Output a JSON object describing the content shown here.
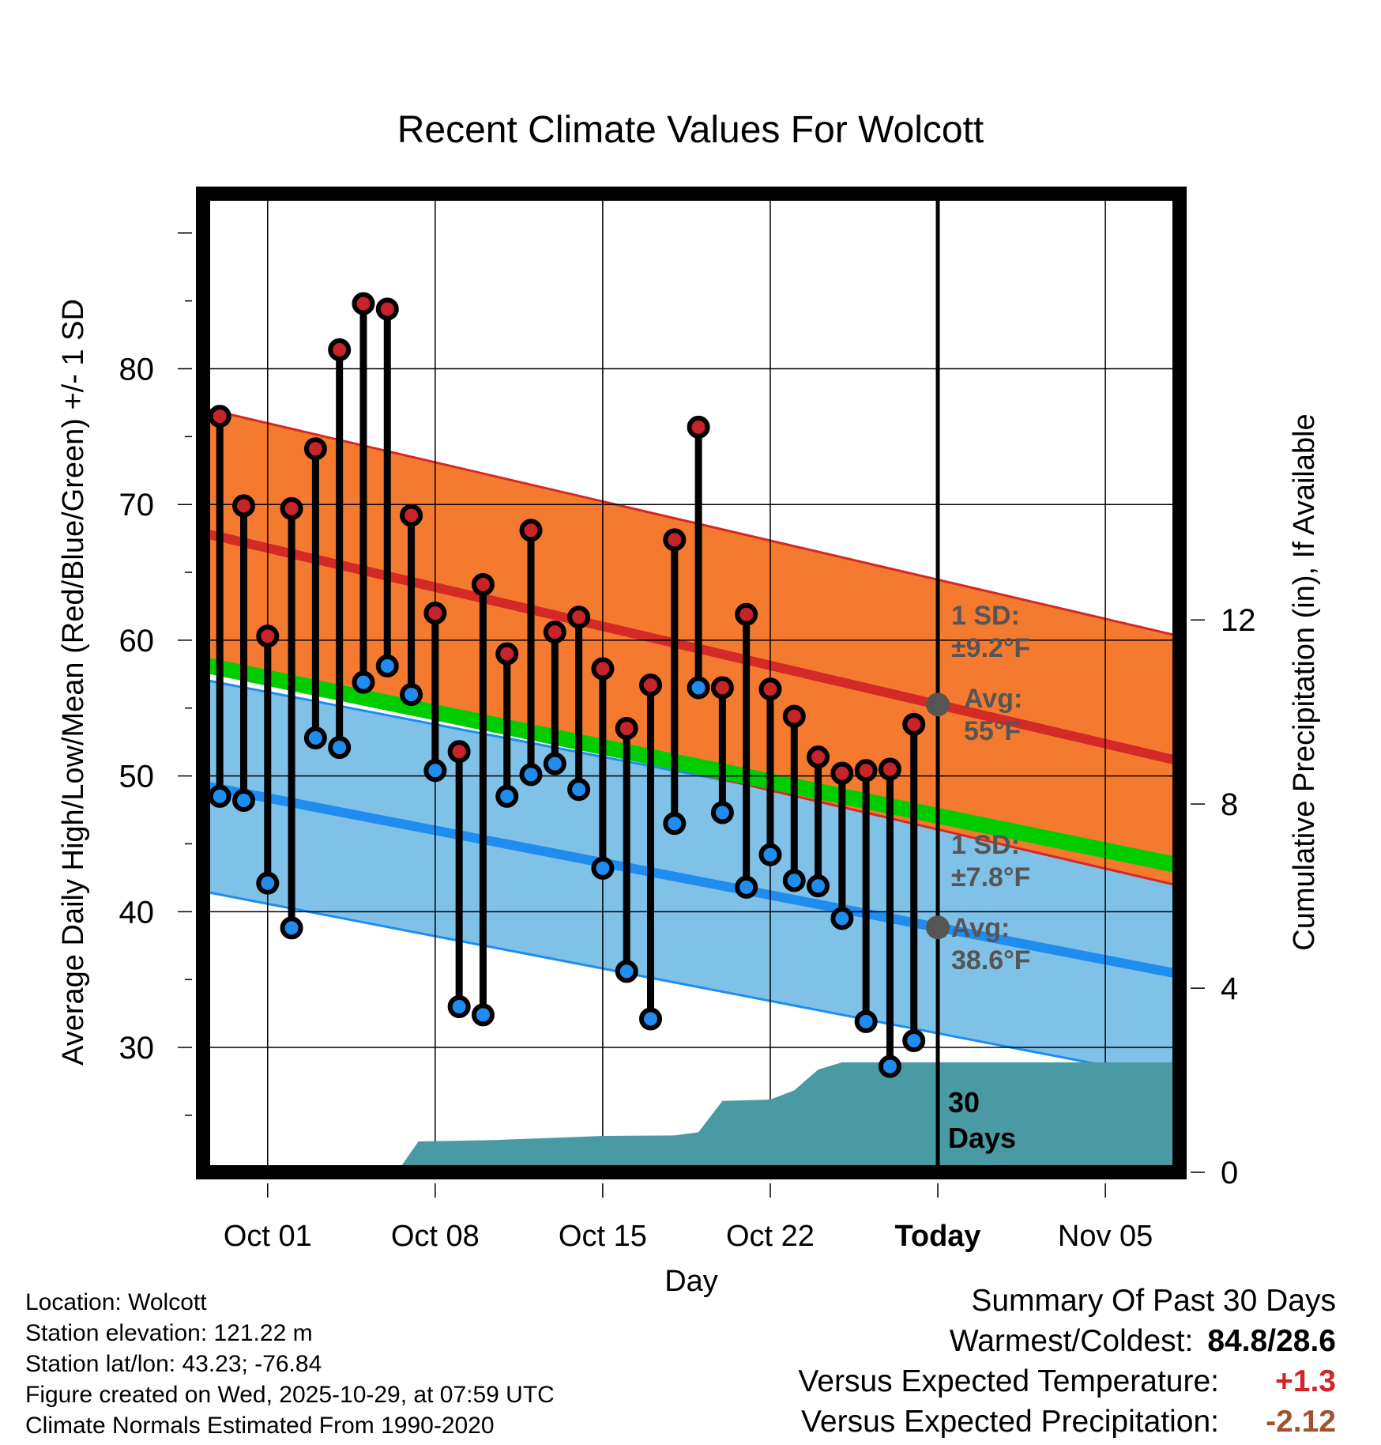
{
  "chart_data": {
    "type": "line",
    "title": "Recent Climate Values For Wolcott",
    "xlabel": "Day",
    "ylabel": "Average Daily High/Low/Mean (Red/Blue/Green) +/- 1 SD",
    "y2label": "Cumulative Precipitation (in), If Available",
    "ylim": [
      20.8,
      92.9
    ],
    "y2lim": [
      0,
      21.26
    ],
    "xlim": [
      -2.7,
      38.1
    ],
    "yticks": [
      30,
      40,
      50,
      60,
      70,
      80
    ],
    "y2ticks": [
      0,
      4,
      8,
      12
    ],
    "xticks": [
      {
        "day": 0,
        "label": "Oct 01"
      },
      {
        "day": 7,
        "label": "Oct 08"
      },
      {
        "day": 14,
        "label": "Oct 15"
      },
      {
        "day": 21,
        "label": "Oct 22"
      },
      {
        "day": 28,
        "label": "Today"
      },
      {
        "day": 35,
        "label": "Nov 05"
      }
    ],
    "today_day": 28,
    "period_label": [
      "30",
      "Days"
    ],
    "days": [
      -2,
      -1,
      0,
      1,
      2,
      3,
      4,
      5,
      6,
      7,
      8,
      9,
      10,
      11,
      12,
      13,
      14,
      15,
      16,
      17,
      18,
      19,
      20,
      21,
      22,
      23,
      24,
      25,
      26,
      27
    ],
    "highs": [
      76.5,
      69.9,
      60.3,
      69.7,
      74.1,
      81.4,
      84.8,
      84.4,
      69.2,
      62.0,
      51.8,
      64.1,
      59.0,
      68.1,
      60.6,
      61.7,
      57.9,
      53.5,
      56.7,
      67.4,
      75.7,
      56.5,
      61.9,
      56.4,
      54.4,
      51.4,
      50.2,
      50.4,
      50.5,
      53.8
    ],
    "lows": [
      48.5,
      48.2,
      42.1,
      38.8,
      52.8,
      52.1,
      56.9,
      58.1,
      56.0,
      50.4,
      33.0,
      32.4,
      48.5,
      50.1,
      50.9,
      49.0,
      43.2,
      35.6,
      32.1,
      46.5,
      56.5,
      47.3,
      41.8,
      44.2,
      42.3,
      41.9,
      39.5,
      31.9,
      28.6,
      30.5
    ],
    "normal_high": {
      "name": "Normal High",
      "x": [
        -2.7,
        38.1
      ],
      "y": [
        67.9,
        51.1
      ],
      "sd": 9.2
    },
    "normal_low": {
      "name": "Normal Low",
      "x": [
        -2.7,
        38.1
      ],
      "y": [
        49.3,
        35.4
      ],
      "sd": 7.8
    },
    "normal_mean": {
      "name": "Normal Mean",
      "x": [
        -2.7,
        38.1
      ],
      "y": [
        58.2,
        43.4
      ]
    },
    "precip_cumulative": {
      "x": [
        5.4,
        6.3,
        9.5,
        12.0,
        14.0,
        17.0,
        18.0,
        19.0,
        21.0,
        22.0,
        23.0,
        24.0,
        38.1
      ],
      "y": [
        0,
        0.67,
        0.7,
        0.75,
        0.79,
        0.8,
        0.87,
        1.55,
        1.58,
        1.78,
        2.23,
        2.39,
        2.39
      ]
    },
    "annotations": {
      "high_sd": [
        "1 SD:",
        "±9.2°F"
      ],
      "high_avg": [
        "Avg:",
        "55°F"
      ],
      "low_sd": [
        "1 SD:",
        "±7.8°F"
      ],
      "low_avg": [
        "Avg:",
        "38.6°F"
      ]
    },
    "colors": {
      "high_band": "#f47a30",
      "high_band_edge": "#d42a27",
      "normal_high": "#d42a27",
      "low_band": "#80c1e7",
      "low_band_edge": "#1f8cf0",
      "normal_low": "#1f8cf0",
      "normal_mean": "#00cc00",
      "precip": "#4a9aa4",
      "high_marker": "#c6232a",
      "low_marker": "#1f8cf0",
      "annotation": "#555555"
    }
  },
  "footer": {
    "location": "Location: Wolcott",
    "elevation": "Station elevation: 121.22 m",
    "latlon": "Station lat/lon: 43.23; -76.84",
    "created": "Figure created on Wed, 2025-10-29, at 07:59 UTC",
    "normals": "Climate Normals Estimated From 1990-2020"
  },
  "summary": {
    "title": "Summary Of Past 30 Days",
    "warmest_label": "Warmest/Coldest:",
    "warmest_value": "84.8/28.6",
    "temp_label": "Versus Expected Temperature:",
    "temp_value": "+1.3",
    "precip_label": "Versus Expected Precipitation:",
    "precip_value": "-2.12"
  }
}
